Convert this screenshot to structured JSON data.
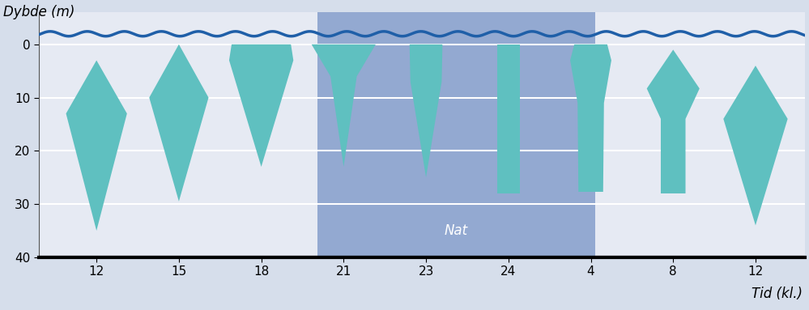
{
  "chart_data": {
    "type": "kite",
    "x_label": "Tid (kl.)",
    "y_label": "Dybde (m)",
    "categories": [
      "12",
      "15",
      "18",
      "21",
      "23",
      "24",
      "4",
      "8",
      "12"
    ],
    "profiles": [
      {
        "depth": [
          3,
          13,
          35
        ],
        "width": [
          0,
          0.37,
          0
        ]
      },
      {
        "depth": [
          0,
          10,
          29.5
        ],
        "width": [
          0,
          0.36,
          0
        ]
      },
      {
        "depth": [
          0,
          3,
          23
        ],
        "width": [
          0.36,
          0.39,
          0
        ]
      },
      {
        "depth": [
          0,
          6,
          23
        ],
        "width": [
          0.39,
          0.16,
          0
        ]
      },
      {
        "depth": [
          0,
          7,
          25
        ],
        "width": [
          0.2,
          0.19,
          0
        ]
      },
      {
        "depth": [
          0,
          28
        ],
        "width": [
          0.14,
          0.14
        ]
      },
      {
        "depth": [
          0,
          3,
          11,
          27.7
        ],
        "width": [
          0.2,
          0.25,
          0.16,
          0.15
        ]
      },
      {
        "depth": [
          1,
          8.3,
          14,
          28
        ],
        "width": [
          0,
          0.32,
          0.15,
          0.15
        ]
      },
      {
        "depth": [
          4,
          14,
          34
        ],
        "width": [
          0,
          0.39,
          0
        ]
      }
    ],
    "night": {
      "label": "Nat",
      "from": 2.68,
      "to": 6.05
    },
    "color": "#5fc0c0",
    "ylim": [
      -6,
      40
    ],
    "yticks": [
      0,
      10,
      20,
      30,
      40
    ],
    "grid": true
  }
}
